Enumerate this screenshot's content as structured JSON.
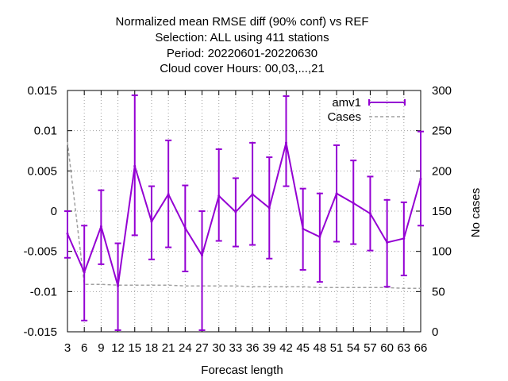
{
  "chart_data": {
    "type": "line",
    "title_lines": [
      "Normalized mean RMSE diff (90% conf) vs REF",
      "Selection: ALL using   411 stations",
      "Period: 20220601-20220630",
      "Cloud cover   Hours:  00,03,...,21"
    ],
    "xlabel": "Forecast length",
    "ylabel": "",
    "y2label": "No cases",
    "x": [
      3,
      6,
      9,
      12,
      15,
      18,
      21,
      24,
      27,
      30,
      33,
      36,
      39,
      42,
      45,
      48,
      51,
      54,
      57,
      60,
      63,
      66
    ],
    "xlim": [
      3,
      66
    ],
    "ylim": [
      -0.015,
      0.015
    ],
    "y2lim": [
      0,
      300
    ],
    "yticks": [
      "-0.015",
      "-0.01",
      "-0.005",
      "0",
      "0.005",
      "0.01",
      "0.015"
    ],
    "yticks_values": [
      -0.015,
      -0.01,
      -0.005,
      0,
      0.005,
      0.01,
      0.015
    ],
    "y2ticks": [
      0,
      50,
      100,
      150,
      200,
      250,
      300
    ],
    "grid": true,
    "legend_position": "top-right",
    "series": [
      {
        "name": "amv1",
        "axis": "left",
        "color": "#9400d3",
        "values": [
          -0.0028,
          -0.0076,
          -0.0019,
          -0.0093,
          0.0056,
          -0.0013,
          0.0021,
          -0.0021,
          -0.0055,
          0.0019,
          -0.0001,
          0.0021,
          0.0004,
          0.0085,
          -0.0022,
          -0.0032,
          0.0022,
          0.001,
          -0.0003,
          -0.0039,
          -0.0034,
          0.004
        ],
        "lower": [
          -0.0058,
          -0.0136,
          -0.0066,
          -0.0148,
          -0.003,
          -0.006,
          -0.0045,
          -0.0075,
          -0.0148,
          -0.0037,
          -0.0044,
          -0.0042,
          -0.0059,
          0.0031,
          -0.0073,
          -0.0088,
          -0.0038,
          -0.0041,
          -0.0049,
          -0.0094,
          -0.008,
          -0.0018
        ],
        "upper": [
          0.0,
          -0.0018,
          0.0026,
          -0.004,
          0.0144,
          0.0031,
          0.0088,
          0.0032,
          0.0,
          0.0077,
          0.0041,
          0.0085,
          0.0067,
          0.0143,
          0.0028,
          0.0022,
          0.0082,
          0.0063,
          0.0043,
          0.0014,
          0.0011,
          0.0099
        ]
      },
      {
        "name": "Cases",
        "axis": "right",
        "color": "#a0a0a0",
        "values": [
          236,
          59,
          59,
          58,
          58,
          58,
          58,
          57,
          57,
          57,
          57,
          56,
          56,
          56,
          56,
          55,
          55,
          55,
          55,
          55,
          54,
          54
        ]
      }
    ]
  }
}
